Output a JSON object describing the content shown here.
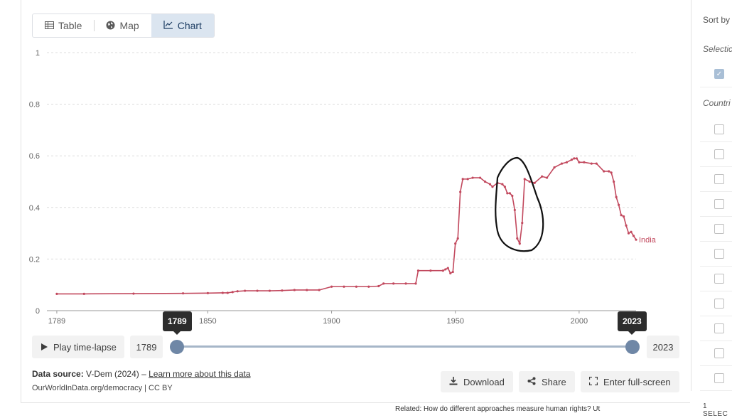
{
  "tabs": [
    {
      "label": "Table",
      "icon": "table-icon"
    },
    {
      "label": "Map",
      "icon": "globe-icon"
    },
    {
      "label": "Chart",
      "icon": "line-chart-icon",
      "active": true
    }
  ],
  "chart_data": {
    "type": "line",
    "title": "",
    "xlabel": "",
    "ylabel": "",
    "xlim": [
      1785,
      2023
    ],
    "ylim": [
      0,
      1
    ],
    "y_ticks": [
      "0",
      "0.2",
      "0.4",
      "0.6",
      "0.8",
      "1"
    ],
    "x_ticks": [
      "1789",
      "1850",
      "1900",
      "1950",
      "2000"
    ],
    "grid": true,
    "series": [
      {
        "name": "India",
        "color": "#c2495e",
        "x": [
          1789,
          1800,
          1820,
          1840,
          1850,
          1856,
          1858,
          1860,
          1862,
          1865,
          1870,
          1875,
          1880,
          1885,
          1890,
          1895,
          1900,
          1905,
          1910,
          1915,
          1919,
          1921,
          1925,
          1930,
          1934,
          1935,
          1940,
          1945,
          1946,
          1947,
          1948,
          1949,
          1950,
          1951,
          1952,
          1953,
          1955,
          1957,
          1960,
          1962,
          1964,
          1965,
          1967,
          1969,
          1970,
          1971,
          1972,
          1973,
          1974,
          1975,
          1976,
          1977,
          1978,
          1980,
          1982,
          1985,
          1987,
          1990,
          1993,
          1995,
          1997,
          1998,
          1999,
          2000,
          2002,
          2005,
          2007,
          2010,
          2012,
          2013,
          2014,
          2015,
          2016,
          2017,
          2018,
          2019,
          2020,
          2021,
          2022,
          2023
        ],
        "y": [
          0.065,
          0.065,
          0.066,
          0.067,
          0.068,
          0.069,
          0.069,
          0.072,
          0.075,
          0.077,
          0.077,
          0.077,
          0.078,
          0.08,
          0.08,
          0.08,
          0.093,
          0.093,
          0.093,
          0.093,
          0.095,
          0.105,
          0.105,
          0.105,
          0.105,
          0.155,
          0.155,
          0.155,
          0.16,
          0.165,
          0.145,
          0.15,
          0.26,
          0.28,
          0.46,
          0.51,
          0.51,
          0.515,
          0.515,
          0.5,
          0.49,
          0.48,
          0.495,
          0.49,
          0.48,
          0.455,
          0.455,
          0.445,
          0.39,
          0.28,
          0.26,
          0.34,
          0.51,
          0.5,
          0.495,
          0.52,
          0.515,
          0.555,
          0.57,
          0.575,
          0.585,
          0.59,
          0.59,
          0.575,
          0.575,
          0.57,
          0.57,
          0.54,
          0.54,
          0.535,
          0.5,
          0.44,
          0.41,
          0.37,
          0.365,
          0.33,
          0.3,
          0.305,
          0.29,
          0.275
        ]
      }
    ]
  },
  "timeline": {
    "play_label": "Play time-lapse",
    "start_year": "1789",
    "end_year": "2023"
  },
  "footer": {
    "source_label": "Data source:",
    "source_text": "V-Dem (2024) –",
    "source_link": "Learn more about this data",
    "url_text": "OurWorldInData.org/democracy | CC BY",
    "download_label": "Download",
    "share_label": "Share",
    "fullscreen_label": "Enter full-screen",
    "related_text": "Related: How do different approaches measure human rights? Ut"
  },
  "right_panel": {
    "sort_label": "Sort by",
    "selection_heading": "Selectic",
    "countries_heading": "Countri",
    "selected_count_text": "1 SELEC"
  }
}
